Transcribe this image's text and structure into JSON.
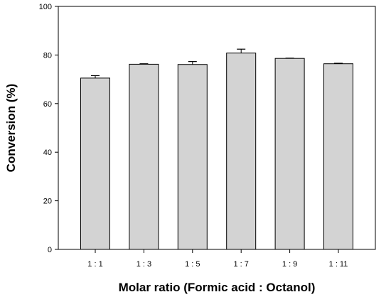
{
  "chart_data": {
    "type": "bar",
    "title": "",
    "xlabel": "Molar ratio (Formic acid : Octanol)",
    "ylabel": "Conversion (%)",
    "categories": [
      "1 : 1",
      "1 : 3",
      "1 : 5",
      "1 : 7",
      "1 : 9",
      "1 : 11"
    ],
    "values": [
      70.5,
      76.2,
      76.1,
      80.8,
      78.6,
      76.4
    ],
    "errors": [
      1.0,
      0.2,
      1.2,
      1.6,
      0.1,
      0.2
    ],
    "ylim": [
      0,
      100
    ],
    "yticks": [
      0,
      20,
      40,
      60,
      80,
      100
    ],
    "grid": false,
    "bar_color": "#d3d3d3",
    "edge_color": "#000000"
  }
}
